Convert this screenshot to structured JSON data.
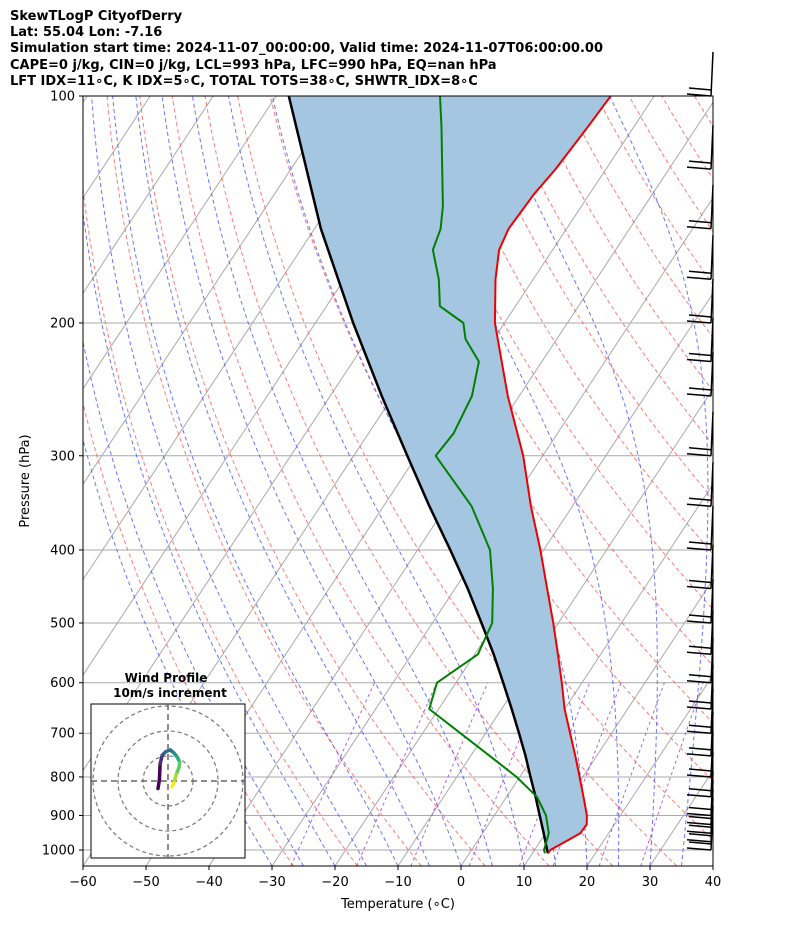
{
  "header": {
    "line1": "SkewTLogP CityofDerry",
    "line2": "Lat: 55.04   Lon: -7.16",
    "line3": "Simulation start time: 2024-11-07_00:00:00, Valid time: 2024-11-07T06:00:00.00",
    "line4": "CAPE=0 j/kg, CIN=0 j/kg, LCL=993 hPa, LFC=990 hPa, EQ=nan hPa",
    "line5": "LFT IDX=11∘C, K IDX=5∘C, TOTAL TOTS=38∘C, SHWTR_IDX=8∘C"
  },
  "chart_data": {
    "type": "skewt-logp",
    "xlabel": "Temperature (∘C)",
    "ylabel": "Pressure (hPa)",
    "xlim": [
      -60,
      40
    ],
    "ylim": [
      1050,
      100
    ],
    "x_ticks": [
      -60,
      -50,
      -40,
      -30,
      -20,
      -10,
      0,
      10,
      20,
      30,
      40
    ],
    "y_ticks": [
      1000,
      900,
      800,
      700,
      600,
      500,
      400,
      300,
      200,
      100
    ],
    "y_scale": "log",
    "grid": true,
    "colors": {
      "temperature": "#ee0000",
      "dewpoint": "#008000",
      "parcel": "#000000",
      "cape_shade": "#a4c6e0",
      "dry_adiabat": "#ff6060",
      "moist_adiabat": "#4d5dff",
      "mixing_ratio": "#9a3fce",
      "isotherm": "#a9a9a9"
    },
    "temperature_profile": [
      {
        "p": 1010,
        "t": 12.5
      },
      {
        "p": 1000,
        "t": 12.5
      },
      {
        "p": 975,
        "t": 14.0
      },
      {
        "p": 950,
        "t": 15.5
      },
      {
        "p": 925,
        "t": 15.6
      },
      {
        "p": 900,
        "t": 14.7
      },
      {
        "p": 850,
        "t": 12.2
      },
      {
        "p": 800,
        "t": 9.5
      },
      {
        "p": 750,
        "t": 6.6
      },
      {
        "p": 700,
        "t": 3.4
      },
      {
        "p": 650,
        "t": 0.0
      },
      {
        "p": 600,
        "t": -3.2
      },
      {
        "p": 550,
        "t": -6.8
      },
      {
        "p": 500,
        "t": -10.8
      },
      {
        "p": 450,
        "t": -15.4
      },
      {
        "p": 400,
        "t": -20.5
      },
      {
        "p": 350,
        "t": -26.6
      },
      {
        "p": 300,
        "t": -33.1
      },
      {
        "p": 250,
        "t": -41.8
      },
      {
        "p": 200,
        "t": -51.5
      },
      {
        "p": 175,
        "t": -56.0
      },
      {
        "p": 160,
        "t": -58.5
      },
      {
        "p": 150,
        "t": -59.2
      },
      {
        "p": 135,
        "t": -58.8
      },
      {
        "p": 125,
        "t": -58.0
      },
      {
        "p": 110,
        "t": -57.3
      },
      {
        "p": 100,
        "t": -56.9
      }
    ],
    "dewpoint_profile": [
      {
        "p": 1010,
        "t": 12.0
      },
      {
        "p": 1000,
        "t": 11.5
      },
      {
        "p": 950,
        "t": 10.5
      },
      {
        "p": 900,
        "t": 8.2
      },
      {
        "p": 850,
        "t": 4.8
      },
      {
        "p": 800,
        "t": -0.5
      },
      {
        "p": 750,
        "t": -7.0
      },
      {
        "p": 700,
        "t": -14.0
      },
      {
        "p": 650,
        "t": -21.5
      },
      {
        "p": 600,
        "t": -23.0
      },
      {
        "p": 550,
        "t": -19.5
      },
      {
        "p": 500,
        "t": -20.5
      },
      {
        "p": 450,
        "t": -24.0
      },
      {
        "p": 400,
        "t": -28.5
      },
      {
        "p": 350,
        "t": -36.0
      },
      {
        "p": 300,
        "t": -47.0
      },
      {
        "p": 280,
        "t": -46.5
      },
      {
        "p": 250,
        "t": -47.5
      },
      {
        "p": 225,
        "t": -50.0
      },
      {
        "p": 210,
        "t": -54.5
      },
      {
        "p": 200,
        "t": -56.5
      },
      {
        "p": 190,
        "t": -62.0
      },
      {
        "p": 175,
        "t": -65.0
      },
      {
        "p": 160,
        "t": -69.0
      },
      {
        "p": 150,
        "t": -70.0
      },
      {
        "p": 140,
        "t": -72.0
      },
      {
        "p": 125,
        "t": -76.0
      },
      {
        "p": 110,
        "t": -80.5
      },
      {
        "p": 100,
        "t": -84.0
      }
    ],
    "parcel_profile": [
      {
        "p": 1010,
        "t": 12.5
      },
      {
        "p": 1000,
        "t": 12.0
      },
      {
        "p": 950,
        "t": 9.7
      },
      {
        "p": 900,
        "t": 7.2
      },
      {
        "p": 850,
        "t": 4.6
      },
      {
        "p": 800,
        "t": 1.7
      },
      {
        "p": 750,
        "t": -1.3
      },
      {
        "p": 700,
        "t": -4.7
      },
      {
        "p": 650,
        "t": -8.4
      },
      {
        "p": 600,
        "t": -12.5
      },
      {
        "p": 550,
        "t": -17.0
      },
      {
        "p": 500,
        "t": -22.2
      },
      {
        "p": 450,
        "t": -28.0
      },
      {
        "p": 400,
        "t": -34.8
      },
      {
        "p": 350,
        "t": -42.7
      },
      {
        "p": 300,
        "t": -51.5
      },
      {
        "p": 250,
        "t": -61.8
      },
      {
        "p": 200,
        "t": -74.0
      },
      {
        "p": 150,
        "t": -89.0
      },
      {
        "p": 100,
        "t": -108.0
      }
    ],
    "wind_barb_pressures": [
      1000,
      975,
      950,
      925,
      900,
      850,
      800,
      750,
      700,
      650,
      600,
      550,
      500,
      450,
      400,
      350,
      300,
      250,
      225,
      200,
      175,
      150,
      125,
      100
    ],
    "inset": {
      "title_line1": "Wind Profile",
      "title_line2": "10m/s increment",
      "rings": 3,
      "hodograph": [
        {
          "u": 0.0,
          "v": -5.0
        },
        {
          "u": 0.4,
          "v": -2.5
        },
        {
          "u": 0.6,
          "v": 2.0
        },
        {
          "u": 1.2,
          "v": 4.5
        },
        {
          "u": 2.2,
          "v": 5.5
        },
        {
          "u": 3.5,
          "v": 6.0
        },
        {
          "u": 4.5,
          "v": 5.2
        },
        {
          "u": 5.5,
          "v": 4.0
        },
        {
          "u": 6.2,
          "v": 2.5
        },
        {
          "u": 6.0,
          "v": 1.0
        },
        {
          "u": 5.2,
          "v": -1.0
        },
        {
          "u": 4.5,
          "v": -3.5
        },
        {
          "u": 4.0,
          "v": -4.5
        }
      ]
    }
  }
}
